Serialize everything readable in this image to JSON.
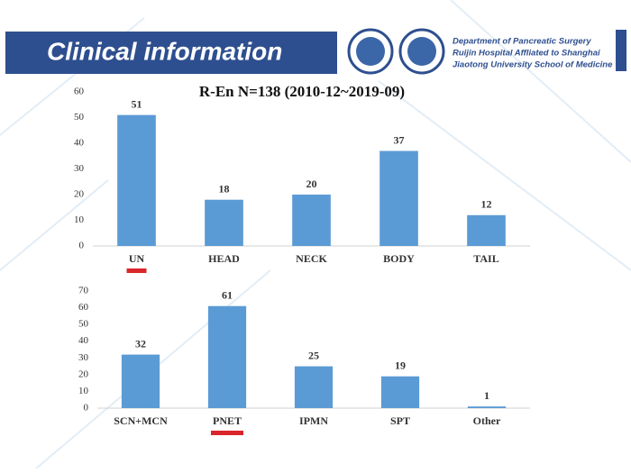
{
  "header": {
    "title": "Clinical information",
    "department": [
      "Department of Pancreatic Surgery",
      "Ruijin Hospital Affliated to Shanghai",
      "Jiaotong University School of Medicine"
    ]
  },
  "chart_data": [
    {
      "type": "bar",
      "title": "R-En  N=138 (2010-12~2019-09)",
      "categories": [
        "UN",
        "HEAD",
        "NECK",
        "BODY",
        "TAIL"
      ],
      "values": [
        51,
        18,
        20,
        37,
        12
      ],
      "color": "#5b9bd5",
      "ylim": [
        0,
        60
      ],
      "yticks": [
        0,
        10,
        20,
        30,
        40,
        50,
        60
      ]
    },
    {
      "type": "bar",
      "categories": [
        "SCN+MCN",
        "PNET",
        "IPMN",
        "SPT",
        "Other"
      ],
      "values": [
        32,
        61,
        25,
        19,
        1
      ],
      "color": "#5b9bd5",
      "ylim": [
        0,
        70
      ],
      "yticks": [
        0,
        10,
        20,
        30,
        40,
        50,
        60,
        70
      ]
    }
  ]
}
